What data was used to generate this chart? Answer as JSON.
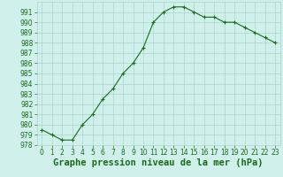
{
  "x": [
    0,
    1,
    2,
    3,
    4,
    5,
    6,
    7,
    8,
    9,
    10,
    11,
    12,
    13,
    14,
    15,
    16,
    17,
    18,
    19,
    20,
    21,
    22,
    23
  ],
  "y": [
    979.5,
    979.0,
    978.5,
    978.5,
    980.0,
    981.0,
    982.5,
    983.5,
    985.0,
    986.0,
    987.5,
    990.0,
    991.0,
    991.5,
    991.5,
    991.0,
    990.5,
    990.5,
    990.0,
    990.0,
    989.5,
    989.0,
    988.5,
    988.0
  ],
  "line_color": "#1a6b1a",
  "marker": "+",
  "marker_size": 3,
  "bg_color": "#cff0eb",
  "grid_color": "#aad4cc",
  "xlabel": "Graphe pression niveau de la mer (hPa)",
  "ylim": [
    978,
    992
  ],
  "xlim_min": -0.5,
  "xlim_max": 23.5,
  "yticks": [
    978,
    979,
    980,
    981,
    982,
    983,
    984,
    985,
    986,
    987,
    988,
    989,
    990,
    991
  ],
  "xticks": [
    0,
    1,
    2,
    3,
    4,
    5,
    6,
    7,
    8,
    9,
    10,
    11,
    12,
    13,
    14,
    15,
    16,
    17,
    18,
    19,
    20,
    21,
    22,
    23
  ],
  "tick_fontsize": 5.5,
  "xlabel_fontsize": 7.5,
  "linewidth": 0.8,
  "markeredgewidth": 0.8
}
